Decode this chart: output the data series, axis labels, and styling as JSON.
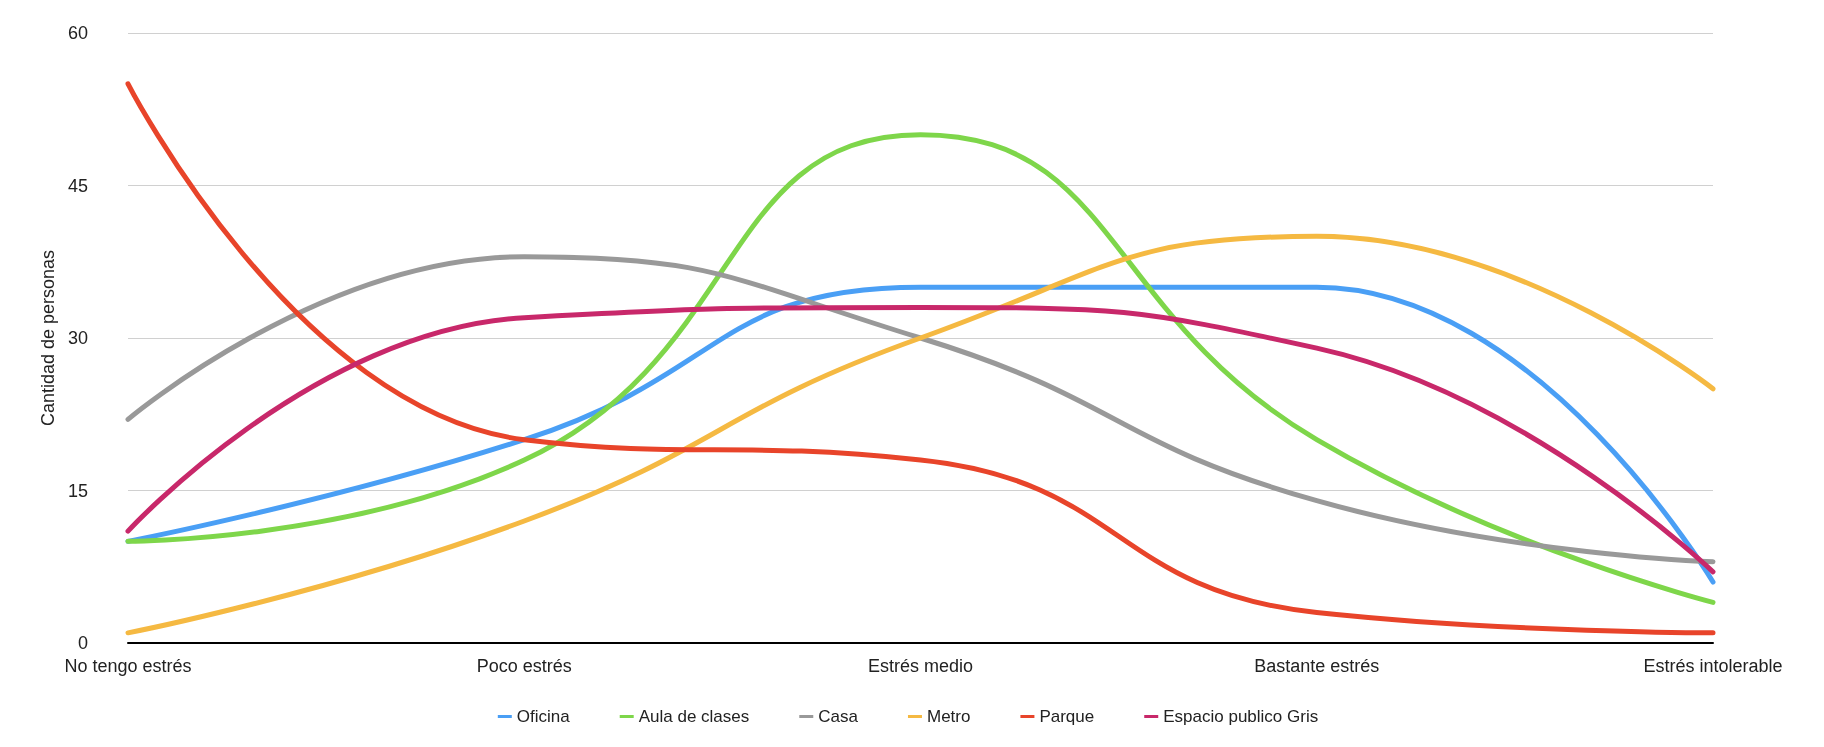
{
  "chart_data": {
    "type": "line",
    "ylabel": "Cantidad de personas",
    "categories": [
      "No tengo estrés",
      "Poco estrés",
      "Estrés medio",
      "Bastante estrés",
      "Estrés intolerable"
    ],
    "series": [
      {
        "name": "Oficina",
        "color": "#4a9ff5",
        "values": [
          10,
          20,
          35,
          35,
          6
        ]
      },
      {
        "name": "Aula de clases",
        "color": "#7ed64a",
        "values": [
          10,
          18,
          50,
          20,
          4
        ]
      },
      {
        "name": "Casa",
        "color": "#999999",
        "values": [
          22,
          38,
          30,
          14,
          8
        ]
      },
      {
        "name": "Metro",
        "color": "#f5b942",
        "values": [
          1,
          12,
          30,
          40,
          25
        ]
      },
      {
        "name": "Parque",
        "color": "#e8442a",
        "values": [
          55,
          20,
          18,
          3,
          1
        ]
      },
      {
        "name": "Espacio publico Gris",
        "color": "#c8286a",
        "values": [
          11,
          32,
          33,
          29,
          7
        ]
      }
    ],
    "ylim": [
      0,
      60
    ],
    "yticks": [
      0,
      15,
      30,
      45,
      60
    ],
    "grid": "y",
    "legend": "bottom",
    "marker": "none",
    "line_style": "solid"
  }
}
